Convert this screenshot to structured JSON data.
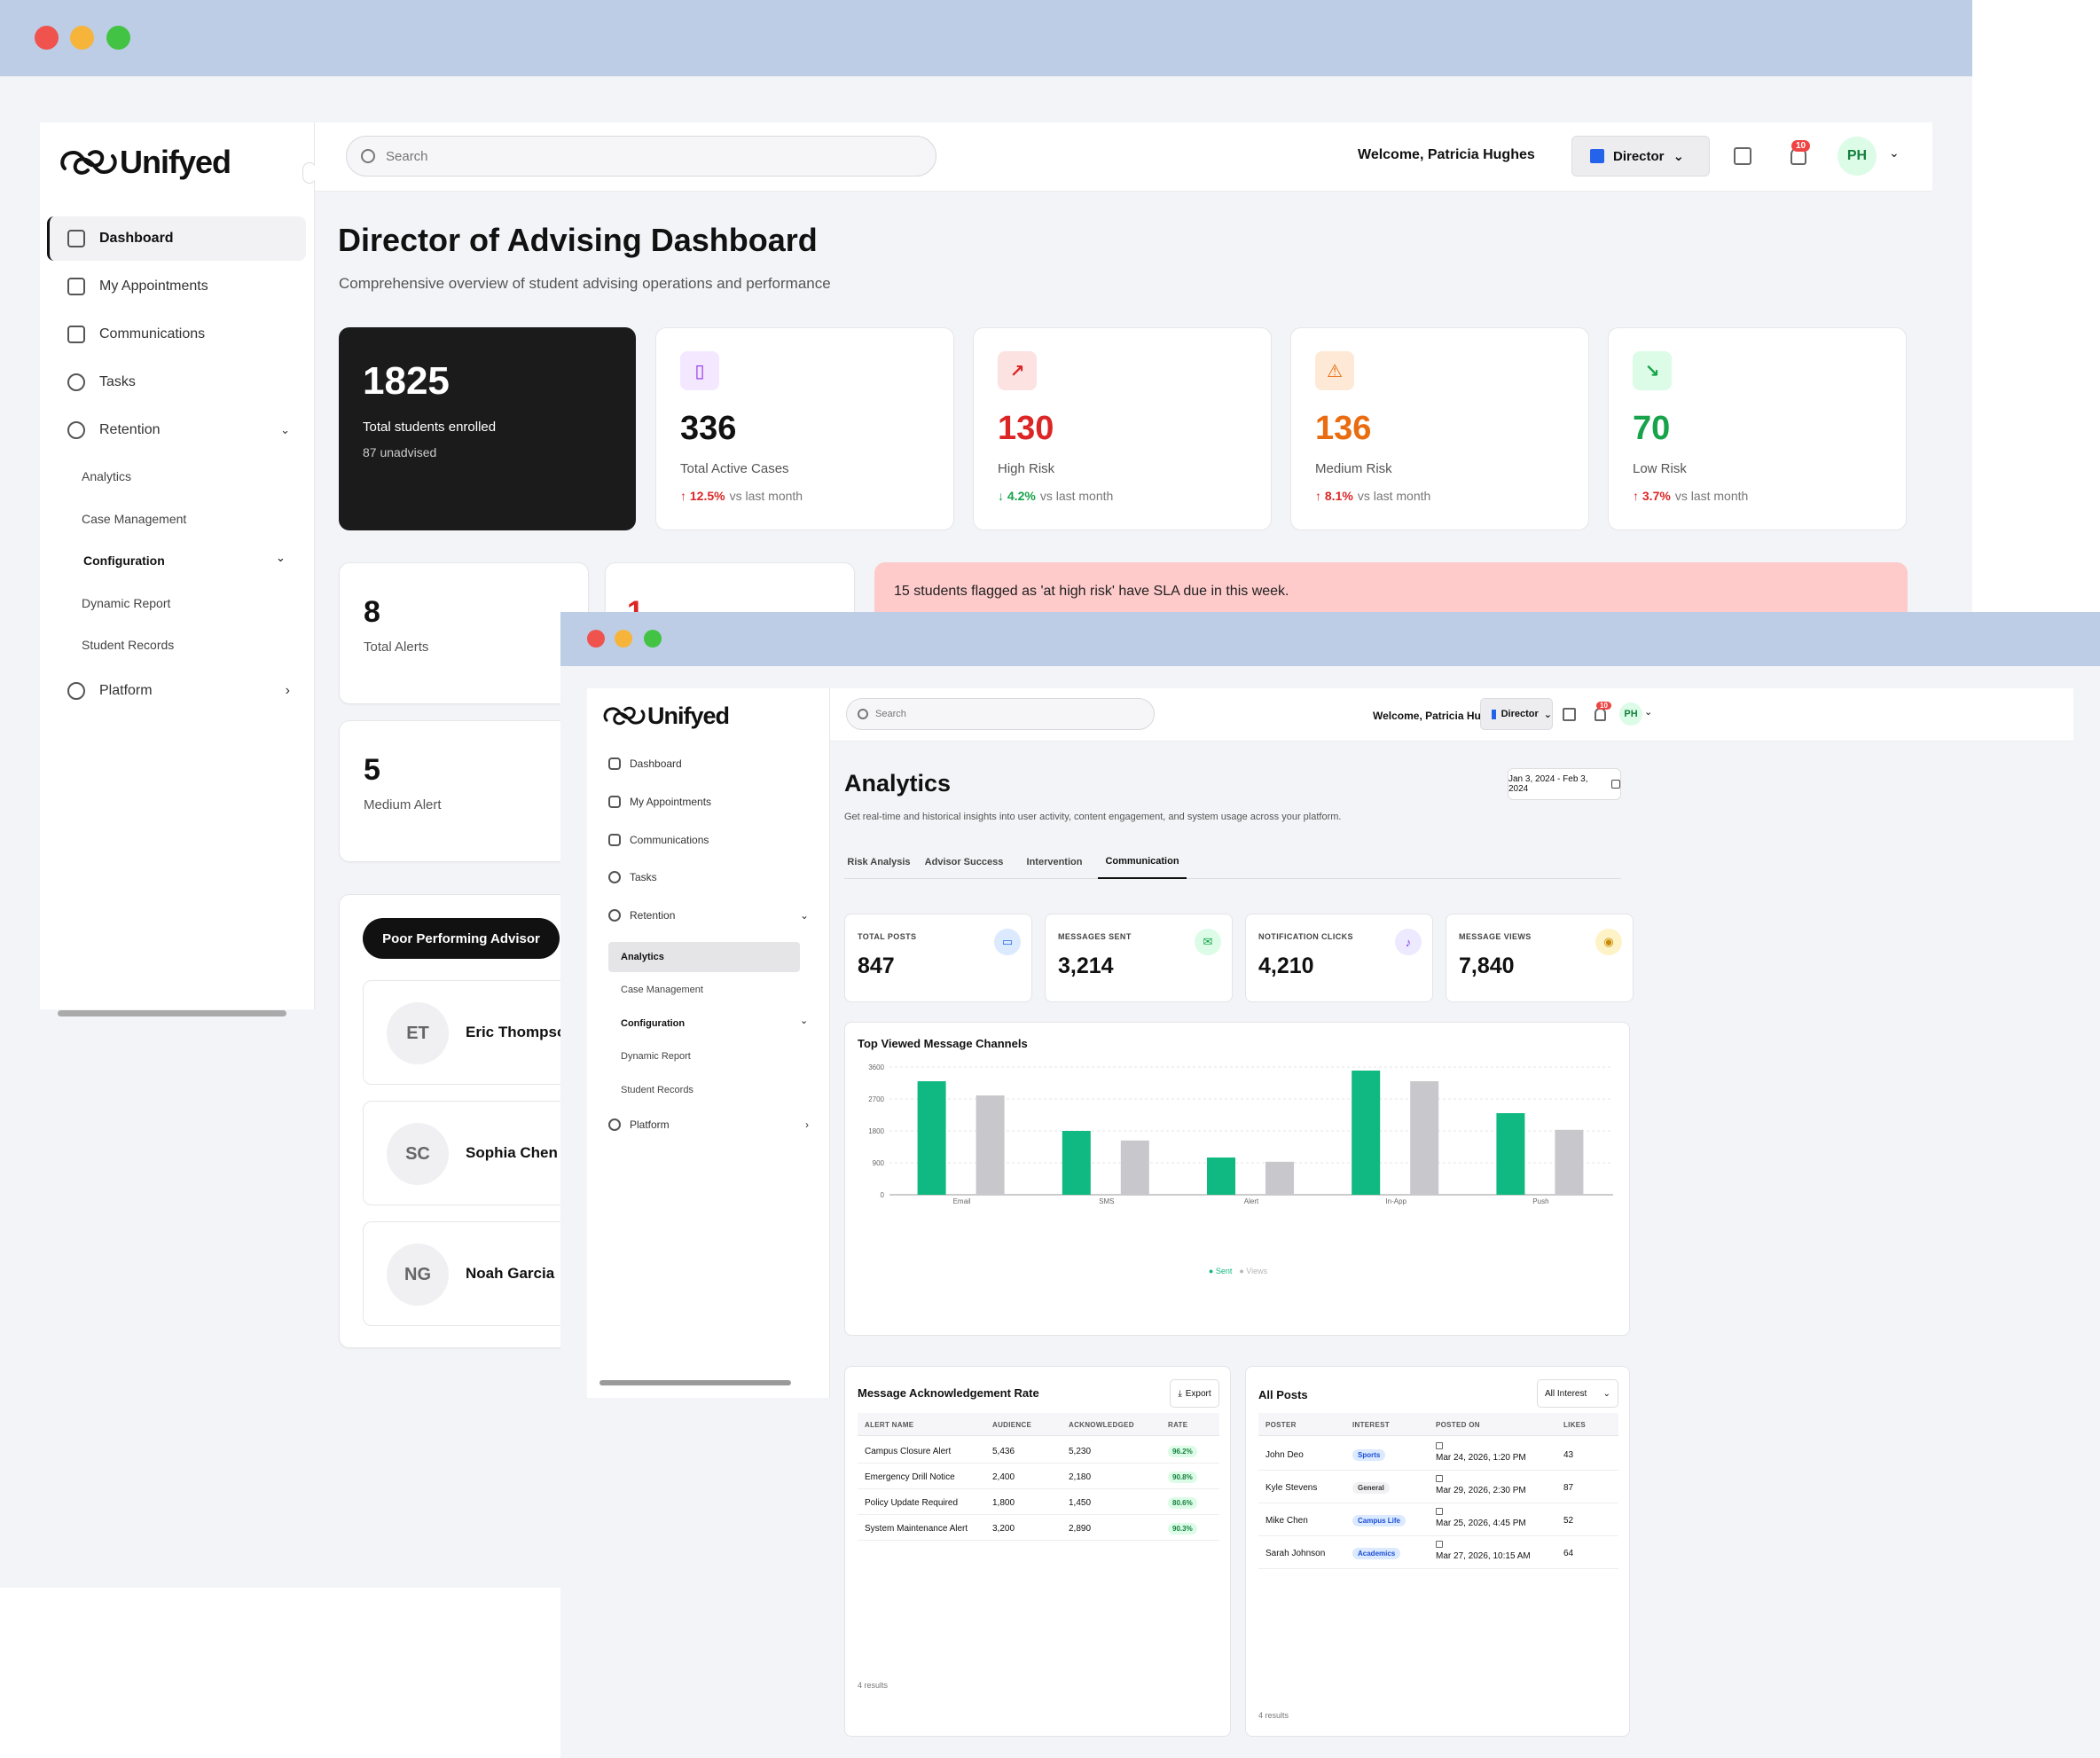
{
  "back": {
    "brand": "Unifyed",
    "search_placeholder": "Search",
    "welcome": "Welcome, Patricia Hughes",
    "role": "Director",
    "notif_count": "10",
    "avatar": "PH",
    "nav": [
      "Dashboard",
      "My Appointments",
      "Communications",
      "Tasks",
      "Retention"
    ],
    "sub": [
      "Analytics",
      "Case Management"
    ],
    "config": "Configuration",
    "sub2": [
      "Dynamic Report",
      "Student Records"
    ],
    "platform": "Platform",
    "title": "Director of Advising Dashboard",
    "subtitle": "Comprehensive overview of student advising operations and performance",
    "hero": {
      "value": "1825",
      "label": "Total students enrolled",
      "note": "87 unadvised"
    },
    "kpis": [
      {
        "value": "336",
        "label": "Total Active Cases",
        "pct": "12.5%",
        "dir": "up",
        "color": "#111111",
        "icon": "book-icon",
        "bg": "#f3e8ff",
        "fg": "#9333ea"
      },
      {
        "value": "130",
        "label": "High Risk",
        "pct": "4.2%",
        "dir": "down",
        "color": "#dc2626",
        "icon": "trend-up-icon",
        "bg": "#fde2e2",
        "fg": "#dc2626"
      },
      {
        "value": "136",
        "label": "Medium Risk",
        "pct": "8.1%",
        "dir": "up",
        "color": "#ea6c10",
        "icon": "warning-icon",
        "bg": "#fde9d5",
        "fg": "#ea6c10"
      },
      {
        "value": "70",
        "label": "Low Risk",
        "pct": "3.7%",
        "dir": "up",
        "color": "#16a34a",
        "icon": "trend-down-icon",
        "bg": "#dcfce7",
        "fg": "#16a34a"
      }
    ],
    "vs": "vs last month",
    "alerts": [
      {
        "value": "8",
        "label": "Total Alerts"
      },
      {
        "value": "5",
        "label": "Medium Alert"
      }
    ],
    "alert_peek": "1",
    "banner": "15 students flagged as 'at high risk' have SLA due in this week.",
    "poor_btn": "Poor Performing Advisor",
    "advisors": [
      {
        "initials": "ET",
        "name": "Eric Thompson"
      },
      {
        "initials": "SC",
        "name": "Sophia Chen"
      },
      {
        "initials": "NG",
        "name": "Noah Garcia"
      }
    ]
  },
  "front": {
    "brand": "Unifyed",
    "search_placeholder": "Search",
    "welcome": "Welcome, Patricia Hughes",
    "role": "Director",
    "notif_count": "10",
    "avatar": "PH",
    "nav": [
      "Dashboard",
      "My Appointments",
      "Communications",
      "Tasks",
      "Retention"
    ],
    "sub": [
      "Analytics",
      "Case Management"
    ],
    "config": "Configuration",
    "sub2": [
      "Dynamic Report",
      "Student Records"
    ],
    "platform": "Platform",
    "title": "Analytics",
    "subtitle": "Get real-time and historical insights into user activity, content engagement, and system usage across your platform.",
    "date_range": "Jan 3, 2024 - Feb 3, 2024",
    "tabs": [
      "Risk Analysis",
      "Advisor Success",
      "Intervention",
      "Communication"
    ],
    "stats": [
      {
        "label": "TOTAL POSTS",
        "value": "847",
        "icon": "chat-icon",
        "bg": "#dbeafe",
        "fg": "#2563eb"
      },
      {
        "label": "MESSAGES SENT",
        "value": "3,214",
        "icon": "mail-icon",
        "bg": "#dcfce7",
        "fg": "#16a34a"
      },
      {
        "label": "NOTIFICATION CLICKS",
        "value": "4,210",
        "icon": "bell-icon",
        "bg": "#ede9fe",
        "fg": "#7c3aed"
      },
      {
        "label": "MESSAGE VIEWS",
        "value": "7,840",
        "icon": "eye-icon",
        "bg": "#fef3c7",
        "fg": "#ca8a04"
      }
    ],
    "ack": {
      "title": "Message Acknowledgement Rate",
      "export": "Export",
      "headers": [
        "ALERT NAME",
        "AUDIENCE",
        "ACKNOWLEDGED",
        "RATE"
      ],
      "rows": [
        [
          "Campus Closure Alert",
          "5,436",
          "5,230",
          "96.2%"
        ],
        [
          "Emergency Drill Notice",
          "2,400",
          "2,180",
          "90.8%"
        ],
        [
          "Policy Update Required",
          "1,800",
          "1,450",
          "80.6%"
        ],
        [
          "System Maintenance Alert",
          "3,200",
          "2,890",
          "90.3%"
        ]
      ],
      "footer": "4 results"
    },
    "posts": {
      "title": "All Posts",
      "filter": "All Interest",
      "headers": [
        "POSTER",
        "INTEREST",
        "POSTED ON",
        "LIKES"
      ],
      "rows": [
        [
          "John Deo",
          "Sports",
          "Mar 24, 2026, 1:20 PM",
          "43"
        ],
        [
          "Kyle Stevens",
          "General",
          "Mar 29, 2026, 2:30 PM",
          "87"
        ],
        [
          "Mike Chen",
          "Campus Life",
          "Mar 25, 2026, 4:45 PM",
          "52"
        ],
        [
          "Sarah Johnson",
          "Academics",
          "Mar 27, 2026, 10:15 AM",
          "64"
        ]
      ],
      "footer": "4 results"
    }
  },
  "chart_data": {
    "type": "bar",
    "title": "Top Viewed Message Channels",
    "categories": [
      "Email",
      "SMS",
      "Alert",
      "In-App",
      "Push"
    ],
    "series": [
      {
        "name": "Sent",
        "values": [
          3200,
          1800,
          1050,
          3500,
          2300
        ],
        "color": "#10b981"
      },
      {
        "name": "Views",
        "values": [
          2800,
          1530,
          930,
          3200,
          1830
        ],
        "color": "#c8c8cc"
      }
    ],
    "yticks": [
      0,
      900,
      1800,
      2700,
      3600
    ],
    "ylim": [
      0,
      3600
    ],
    "grid": true,
    "legend": "bottom-center"
  }
}
